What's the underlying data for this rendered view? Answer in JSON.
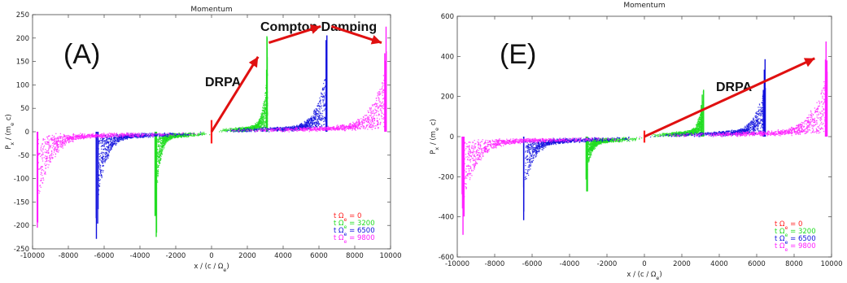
{
  "figure": {
    "background": "#ffffff"
  },
  "chart_data": [
    {
      "type": "scatter",
      "panel_label": "(A)",
      "title": "Momentum",
      "xlabel": "x / (c / Ω_e)",
      "ylabel": "P_x / (m_e c)",
      "xlim": [
        -10000,
        10000
      ],
      "ylim": [
        -250,
        250
      ],
      "xticks": [
        -10000,
        -8000,
        -6000,
        -4000,
        -2000,
        0,
        2000,
        4000,
        6000,
        8000,
        10000
      ],
      "yticks": [
        -250,
        -200,
        -150,
        -100,
        -50,
        0,
        50,
        100,
        150,
        200,
        250
      ],
      "grid": false,
      "legend_position": "bottom-right",
      "series": [
        {
          "name": "t Ω_e = 0",
          "color": "#ff2020",
          "front": 0,
          "peak": 25
        },
        {
          "name": "t Ω_e = 3200",
          "color": "#22dd22",
          "front": 3100,
          "peak": 230
        },
        {
          "name": "t Ω_e = 6500",
          "color": "#1010dd",
          "front": 6400,
          "peak": 245
        },
        {
          "name": "t Ω_e = 9800",
          "color": "#ff20ff",
          "front": 9700,
          "peak": 240
        }
      ],
      "annotations": [
        {
          "text": "DRPA",
          "arrows": [
            {
              "from": [
                0,
                0
              ],
              "to": [
                2600,
                160
              ]
            }
          ]
        },
        {
          "text": "Compton Damping",
          "arrows": [
            {
              "from": [
                3200,
                190
              ],
              "to": [
                6100,
                225
              ]
            },
            {
              "from": [
                6700,
                225
              ],
              "to": [
                9500,
                190
              ]
            }
          ]
        }
      ]
    },
    {
      "type": "scatter",
      "panel_label": "(E)",
      "title": "Momentum",
      "xlabel": "x / (c / Ω_e)",
      "ylabel": "P_x / (m_e c)",
      "xlim": [
        -10000,
        10000
      ],
      "ylim": [
        -600,
        600
      ],
      "xticks": [
        -10000,
        -8000,
        -6000,
        -4000,
        -2000,
        0,
        2000,
        4000,
        6000,
        8000,
        10000
      ],
      "yticks": [
        -600,
        -400,
        -200,
        0,
        200,
        400,
        600
      ],
      "grid": false,
      "legend_position": "bottom-right",
      "series": [
        {
          "name": "t Ω_e = 0",
          "color": "#ff2020",
          "front": 0,
          "peak": 30
        },
        {
          "name": "t Ω_e = 3200",
          "color": "#22dd22",
          "front": 3100,
          "peak": 280
        },
        {
          "name": "t Ω_e = 6500",
          "color": "#1010dd",
          "front": 6400,
          "peak": 420
        },
        {
          "name": "t Ω_e = 9800",
          "color": "#ff20ff",
          "front": 9700,
          "peak": 520
        }
      ],
      "annotations": [
        {
          "text": "DRPA",
          "arrows": [
            {
              "from": [
                0,
                0
              ],
              "to": [
                9100,
                390
              ]
            }
          ]
        }
      ]
    }
  ]
}
